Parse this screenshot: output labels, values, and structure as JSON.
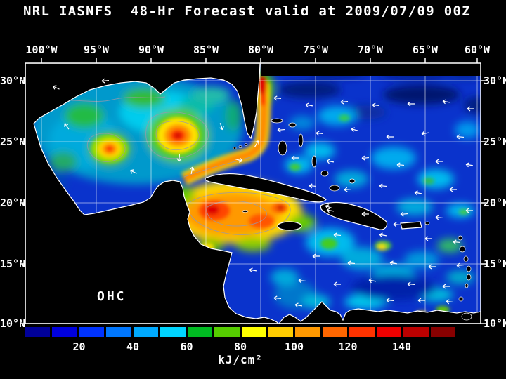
{
  "title": "NRL IASNFS  48-Hr Forecast valid at 2009/07/09 00Z",
  "map": {
    "overlay_label": "OHC",
    "top_axis_labels": [
      "100°W",
      "95°W",
      "90°W",
      "85°W",
      "80°W",
      "75°W",
      "70°W",
      "65°W",
      "60°W"
    ],
    "left_axis_labels": [
      "30°N",
      "25°N",
      "20°N",
      "15°N",
      "10°N"
    ],
    "right_axis_labels": [
      "30°N",
      "25°N",
      "20°N",
      "15°N",
      "10°N"
    ]
  },
  "colorbar": {
    "unit_label": "kJ/cm²",
    "tick_labels": [
      "20",
      "40",
      "60",
      "80",
      "100",
      "120",
      "140"
    ],
    "colors": [
      "#000099",
      "#0000dd",
      "#0033ff",
      "#0077ff",
      "#00aaff",
      "#00d5ff",
      "#00bb22",
      "#55cc00",
      "#ffff00",
      "#ffcc00",
      "#ff9900",
      "#ff6600",
      "#ff3300",
      "#ee0000",
      "#bb0000",
      "#880000"
    ]
  },
  "chart_data": {
    "type": "heatmap",
    "title": "NRL IASNFS 48-Hr Forecast valid at 2009/07/09 00Z",
    "variable": "OHC",
    "unit": "kJ/cm²",
    "x_axis_ticks": [
      "100°W",
      "95°W",
      "90°W",
      "85°W",
      "80°W",
      "75°W",
      "70°W",
      "65°W",
      "60°W"
    ],
    "y_axis_ticks": [
      "30°N",
      "25°N",
      "20°N",
      "15°N",
      "10°N"
    ],
    "colorbar_ticks": [
      20,
      40,
      60,
      80,
      100,
      120,
      140
    ],
    "colorbar_range": [
      0,
      160
    ],
    "legend_position": "bottom",
    "notable_features": "High OHC (orange/red) in NW Caribbean warm pool and Loop Current eddy in central Gulf of Mexico; Gulf Stream warm band east of Florida; cooler (blue/cyan) Atlantic and eastern Caribbean"
  }
}
